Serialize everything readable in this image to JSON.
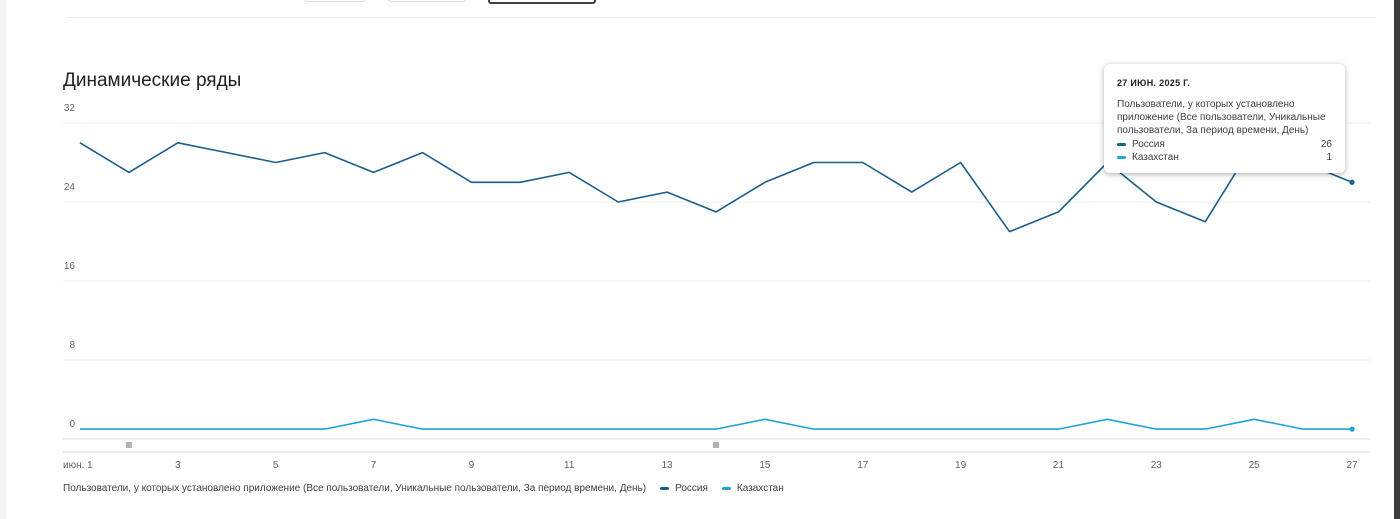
{
  "chart_data": {
    "type": "line",
    "title": "Динамические ряды",
    "x": [
      1,
      2,
      3,
      4,
      5,
      6,
      7,
      8,
      9,
      10,
      11,
      12,
      13,
      14,
      15,
      16,
      17,
      18,
      19,
      20,
      21,
      22,
      23,
      24,
      25,
      26,
      27
    ],
    "x_tick_values": [
      1,
      3,
      5,
      7,
      9,
      11,
      13,
      15,
      17,
      19,
      21,
      23,
      25,
      27
    ],
    "x_tick_labels": [
      "июн. 1",
      "3",
      "5",
      "7",
      "9",
      "11",
      "13",
      "15",
      "17",
      "19",
      "21",
      "23",
      "25",
      "27"
    ],
    "y_ticks": [
      0,
      8,
      16,
      24,
      32
    ],
    "ylim": [
      0,
      32
    ],
    "grid": true,
    "legend_position": "bottom-left",
    "legend_metric": "Пользователи, у которых установлено приложение (Все пользователи, Уникальные пользователи, За период времени, День)",
    "series": [
      {
        "name": "Россия",
        "color": "#1a5f8a",
        "values": [
          30,
          27,
          30,
          29,
          28,
          29,
          27,
          29,
          26,
          26,
          27,
          24,
          25,
          23,
          26,
          28,
          28,
          25,
          28,
          21,
          23,
          28,
          24,
          22,
          30,
          28,
          26
        ]
      },
      {
        "name": "Казахстан",
        "color": "#1fa2de",
        "values": [
          1,
          1,
          1,
          1,
          1,
          1,
          2,
          1,
          1,
          1,
          1,
          1,
          1,
          1,
          2,
          1,
          1,
          1,
          1,
          1,
          1,
          2,
          1,
          1,
          2,
          1,
          1
        ]
      }
    ],
    "anomaly_markers_x": [
      2,
      14
    ],
    "tooltip": {
      "date": "27 ИЮН. 2025 Г.",
      "metric": "Пользователи, у которых установлено приложение (Все пользователи, Уникальные пользователи, За период времени, День)",
      "rows": [
        {
          "name": "Россия",
          "value": "26",
          "color": "#1a5f8a"
        },
        {
          "name": "Казахстан",
          "value": "1",
          "color": "#1fa2de"
        }
      ]
    }
  }
}
